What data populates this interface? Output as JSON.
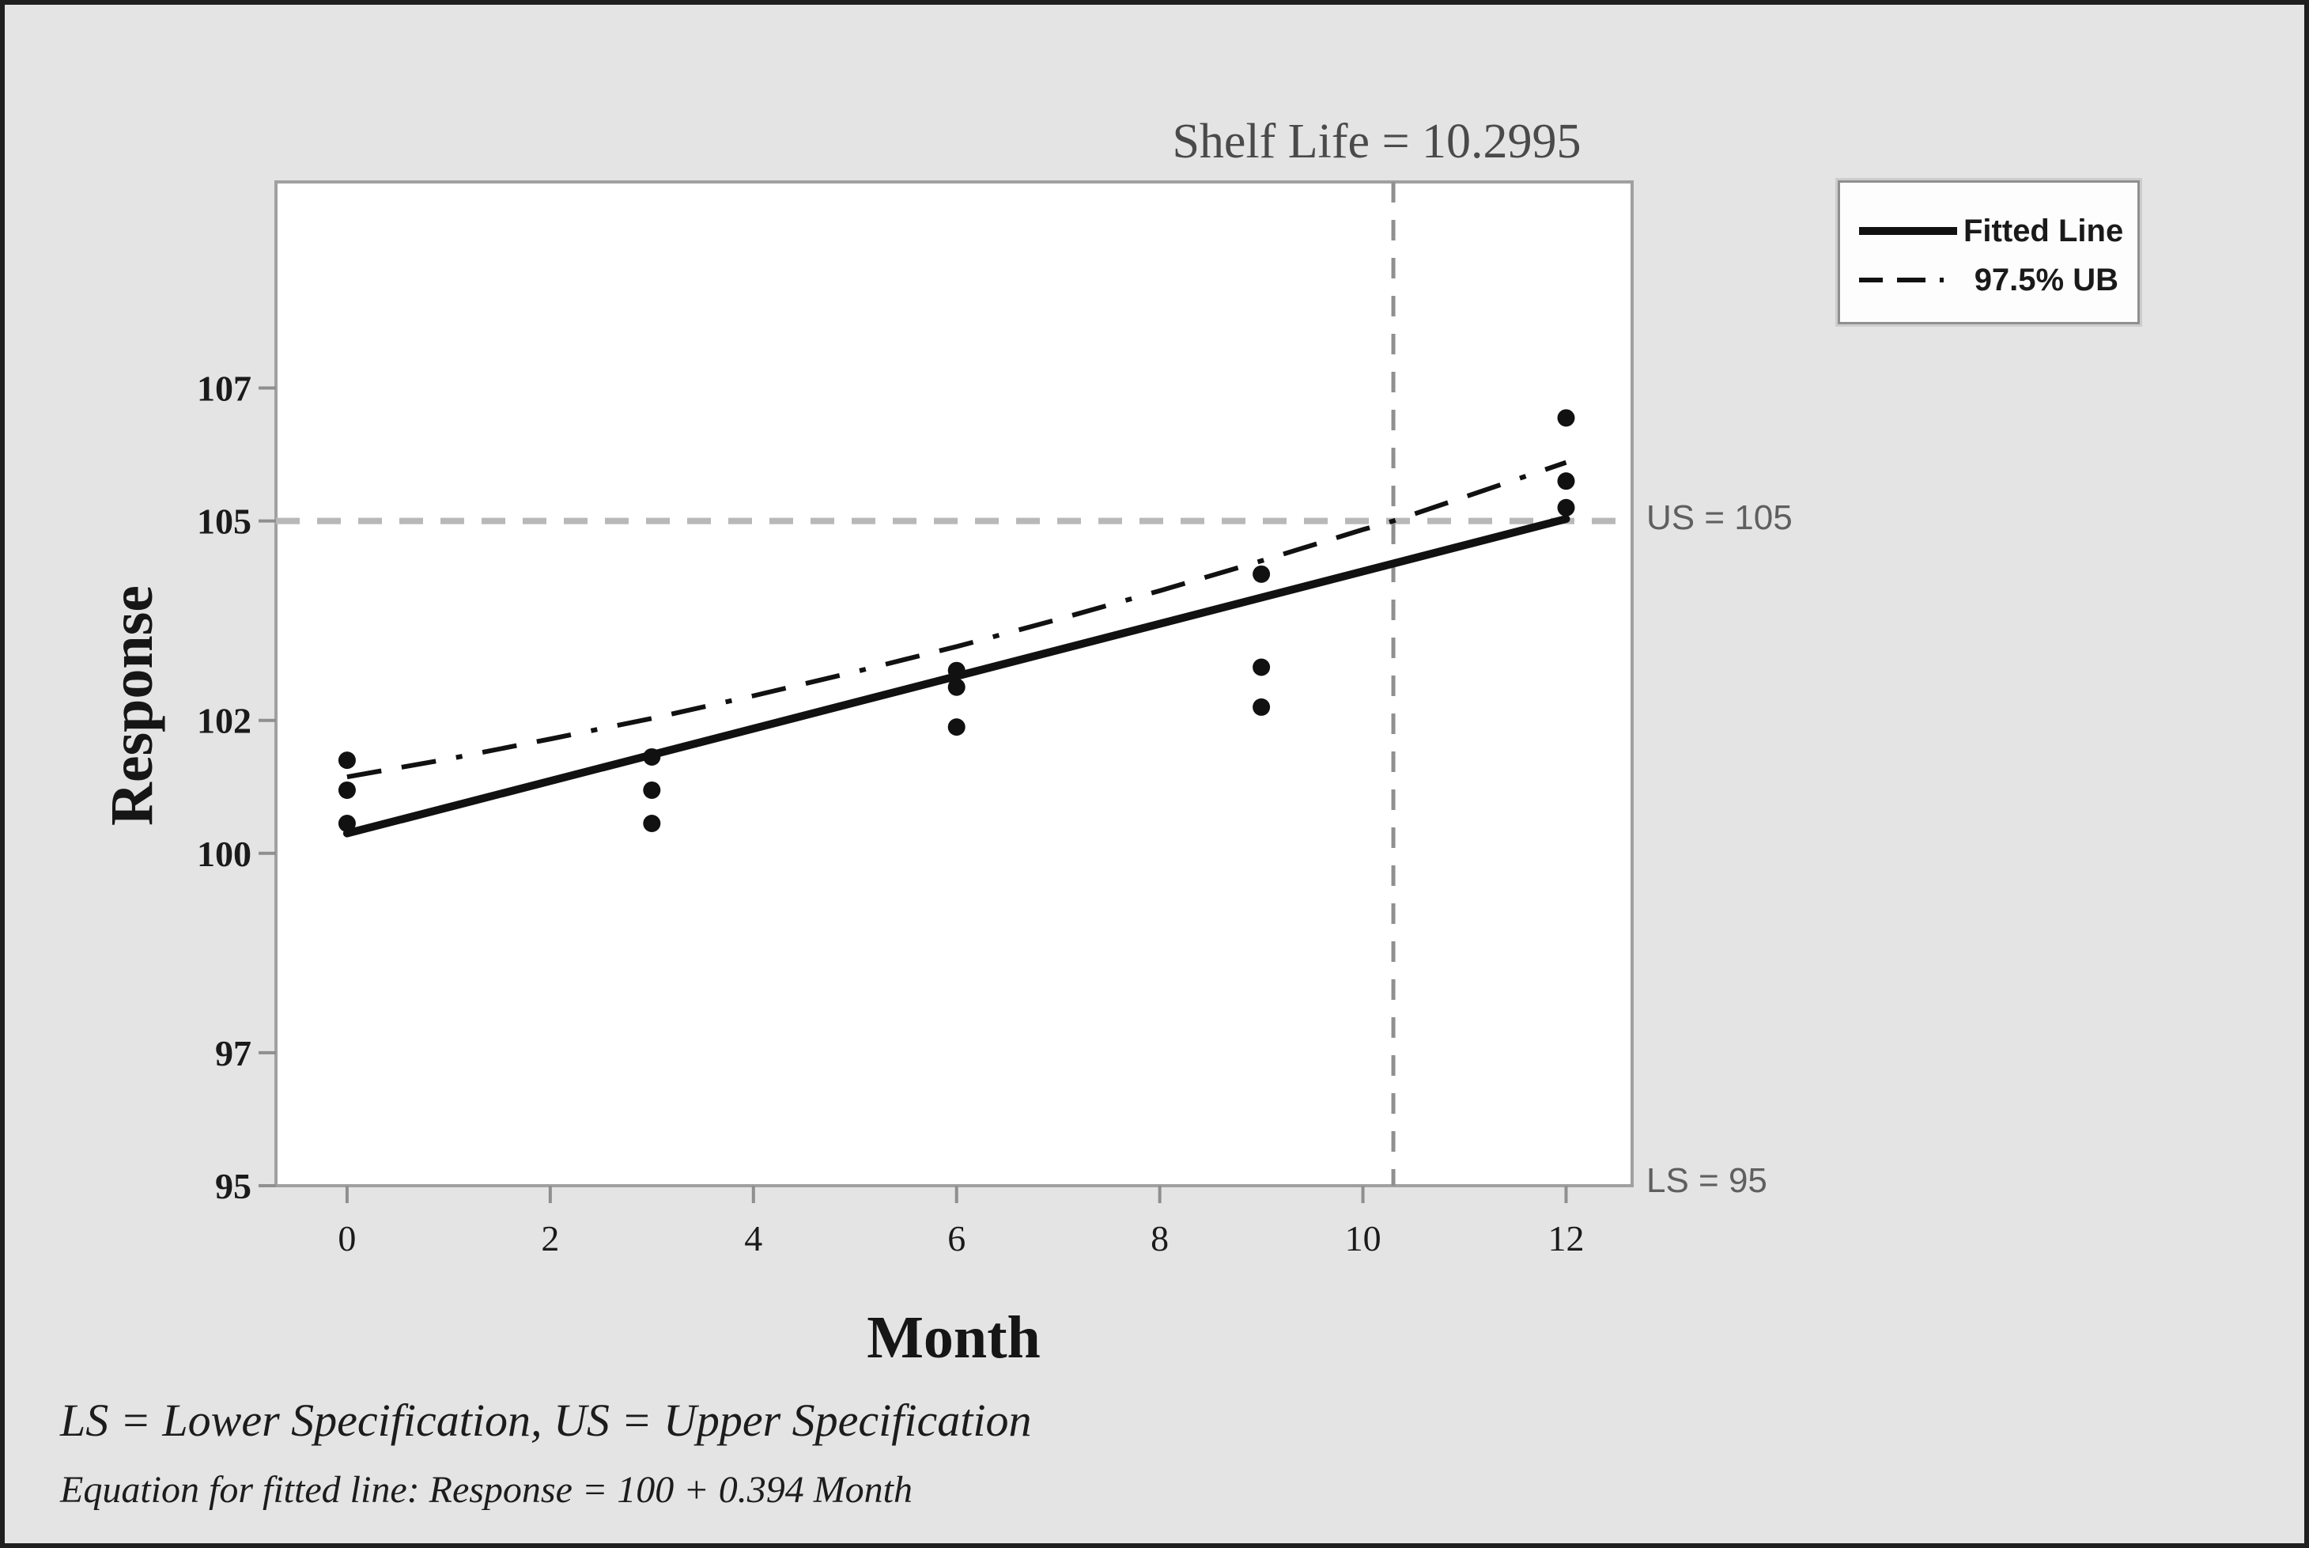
{
  "figure": {
    "title": "Shelf Life = 10.2995",
    "x_axis_label": "Month",
    "y_axis_label": "Response",
    "upper_spec_label": "US = 105",
    "lower_spec_label": "LS = 95",
    "legend": [
      {
        "label": "Fitted Line",
        "style": "solid"
      },
      {
        "label": "97.5% UB",
        "style": "dash-dash-dot"
      }
    ],
    "footnote_1": "LS = Lower Specification, US = Upper Specification",
    "footnote_2": "Equation for fitted line: Response = 100 + 0.394 Month"
  },
  "chart_data": {
    "type": "scatter",
    "title": "Shelf Life = 10.2995",
    "xlabel": "Month",
    "ylabel": "Response",
    "xticks": [
      0,
      2,
      4,
      6,
      8,
      10,
      12
    ],
    "yticks": [
      95,
      97,
      100,
      102,
      105,
      107
    ],
    "xlim": [
      -0.7,
      12.65
    ],
    "ylim": [
      95,
      110.1
    ],
    "grid": "off",
    "legend_position": "top-right-outside",
    "shelf_life": 10.2995,
    "upper_spec": 105,
    "lower_spec": 95,
    "points": [
      [
        0,
        101.4
      ],
      [
        0,
        100.95
      ],
      [
        0,
        100.45
      ],
      [
        3,
        101.45
      ],
      [
        3,
        100.95
      ],
      [
        3,
        100.45
      ],
      [
        6,
        102.75
      ],
      [
        6,
        102.5
      ],
      [
        6,
        101.9
      ],
      [
        9,
        104.2
      ],
      [
        9,
        102.8
      ],
      [
        9,
        102.2
      ],
      [
        12,
        106.55
      ],
      [
        12,
        105.6
      ],
      [
        12,
        105.2
      ]
    ],
    "fitted_line": {
      "name": "Fitted Line",
      "equation": "Response = 100 + 0.394 Month",
      "x": [
        0,
        12
      ],
      "y": [
        100.3,
        105.03
      ]
    },
    "ub_curve": {
      "name": "97.5% UB",
      "x": [
        0,
        1,
        2,
        3,
        4,
        5,
        6,
        7,
        8,
        9,
        10,
        10.2995,
        11,
        12
      ],
      "y": [
        101.15,
        101.42,
        101.72,
        102.03,
        102.37,
        102.73,
        103.11,
        103.52,
        103.95,
        104.4,
        104.87,
        105.0,
        105.36,
        105.88
      ]
    },
    "colors": {
      "background": "#e3e4e3",
      "plot_background": "#ffffff",
      "plot_border": "#a0a0a0",
      "points": "#111111",
      "fitted_line": "#111111",
      "ub_curve": "#111111",
      "spec_line": "#b8b8b8",
      "shelf_line": "#909090",
      "tick": "#8f8f8f",
      "spec_label_text": "#5f5f5f",
      "title_text": "#4a4a4a"
    }
  }
}
